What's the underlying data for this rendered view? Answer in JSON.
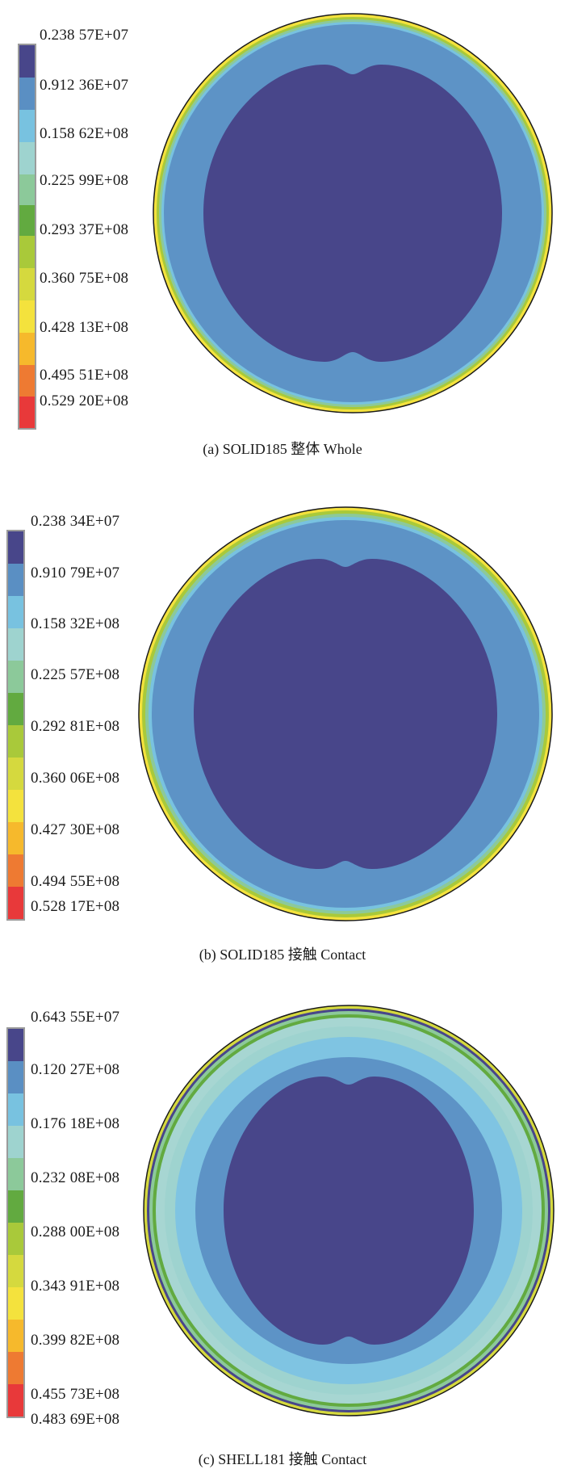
{
  "panels": [
    {
      "id": "a",
      "caption": "(a) SOLID185 整体 Whole",
      "legend": [
        "0.238 57E+07",
        "0.912 36E+07",
        "0.158 62E+08",
        "0.225 99E+08",
        "0.293 37E+08",
        "0.360 75E+08",
        "0.428 13E+08",
        "0.495 51E+08",
        "0.529 20E+08"
      ]
    },
    {
      "id": "b",
      "caption": "(b) SOLID185 接触 Contact",
      "legend": [
        "0.238 34E+07",
        "0.910 79E+07",
        "0.158 32E+08",
        "0.225 57E+08",
        "0.292 81E+08",
        "0.360 06E+08",
        "0.427 30E+08",
        "0.494 55E+08",
        "0.528 17E+08"
      ]
    },
    {
      "id": "c",
      "caption": "(c) SHELL181 接触 Contact",
      "legend": [
        "0.643 55E+07",
        "0.120 27E+08",
        "0.176 18E+08",
        "0.232 08E+08",
        "0.288 00E+08",
        "0.343 91E+08",
        "0.399 82E+08",
        "0.455 73E+08",
        "0.483 69E+08"
      ]
    }
  ],
  "colors": {
    "contour_scale": [
      "#48468a",
      "#5a8fc3",
      "#78c2e0",
      "#9ed3cf",
      "#8cc99a",
      "#62aa40",
      "#a9c93a",
      "#d5d93e",
      "#f4e23d",
      "#f6b92c",
      "#ee7a32",
      "#e8393a"
    ],
    "inner": "#48468a",
    "middle": "#5d93c6",
    "light": "#7fc4e2",
    "pale": "#a7d6d2",
    "outline": "#1a1a1a"
  }
}
